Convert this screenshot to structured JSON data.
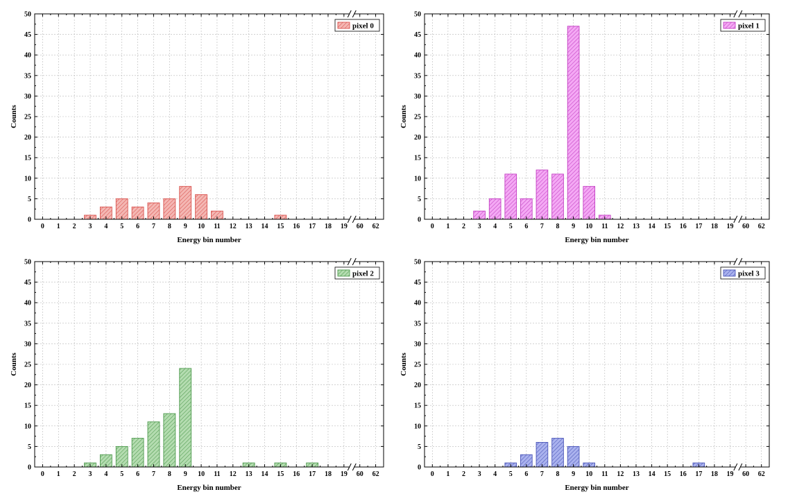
{
  "chart_data": [
    {
      "type": "bar",
      "series_name": "pixel 0",
      "color": "#d9534f",
      "fill": "#f4b7b3",
      "categories": [
        "0",
        "1",
        "2",
        "3",
        "4",
        "5",
        "6",
        "7",
        "8",
        "9",
        "10",
        "11",
        "12",
        "13",
        "14",
        "15",
        "16",
        "17",
        "18",
        "19",
        "60",
        "62"
      ],
      "values": [
        0,
        0,
        0,
        1,
        3,
        5,
        3,
        4,
        5,
        8,
        6,
        2,
        0,
        0,
        0,
        1,
        0,
        0,
        0,
        0,
        0,
        0
      ],
      "xlabel": "Energy bin number",
      "ylabel": "Counts",
      "ylim": [
        0,
        50
      ],
      "yticks": [
        0,
        5,
        10,
        15,
        20,
        25,
        30,
        35,
        40,
        45,
        50
      ],
      "axis_break": "between 19 and 60",
      "legend": "top-right",
      "grid": true
    },
    {
      "type": "bar",
      "series_name": "pixel 1",
      "color": "#c23ec2",
      "fill": "#f4a9f4",
      "categories": [
        "0",
        "1",
        "2",
        "3",
        "4",
        "5",
        "6",
        "7",
        "8",
        "9",
        "10",
        "11",
        "12",
        "13",
        "14",
        "15",
        "16",
        "17",
        "18",
        "19",
        "60",
        "62"
      ],
      "values": [
        0,
        0,
        0,
        2,
        5,
        11,
        5,
        12,
        11,
        47,
        8,
        1,
        0,
        0,
        0,
        0,
        0,
        0,
        0,
        0,
        0,
        0
      ],
      "xlabel": "Energy bin number",
      "ylabel": "Counts",
      "ylim": [
        0,
        50
      ],
      "yticks": [
        0,
        5,
        10,
        15,
        20,
        25,
        30,
        35,
        40,
        45,
        50
      ],
      "axis_break": "between 19 and 60",
      "legend": "top-right",
      "grid": true
    },
    {
      "type": "bar",
      "series_name": "pixel 2",
      "color": "#4f9a4f",
      "fill": "#b4dcb0",
      "categories": [
        "0",
        "1",
        "2",
        "3",
        "4",
        "5",
        "6",
        "7",
        "8",
        "9",
        "10",
        "11",
        "12",
        "13",
        "14",
        "15",
        "16",
        "17",
        "18",
        "19",
        "60",
        "62"
      ],
      "values": [
        0,
        0,
        0,
        1,
        3,
        5,
        7,
        11,
        13,
        24,
        0,
        0,
        0,
        1,
        0,
        1,
        0,
        1,
        0,
        0,
        0,
        0
      ],
      "xlabel": "Energy bin number",
      "ylabel": "Counts",
      "ylim": [
        0,
        50
      ],
      "yticks": [
        0,
        5,
        10,
        15,
        20,
        25,
        30,
        35,
        40,
        45,
        50
      ],
      "axis_break": "between 19 and 60",
      "legend": "top-right",
      "grid": true
    },
    {
      "type": "bar",
      "series_name": "pixel 3",
      "color": "#4a55b8",
      "fill": "#aab2ee",
      "categories": [
        "0",
        "1",
        "2",
        "3",
        "4",
        "5",
        "6",
        "7",
        "8",
        "9",
        "10",
        "11",
        "12",
        "13",
        "14",
        "15",
        "16",
        "17",
        "18",
        "19",
        "60",
        "62"
      ],
      "values": [
        0,
        0,
        0,
        0,
        0,
        1,
        3,
        6,
        7,
        5,
        1,
        0,
        0,
        0,
        0,
        0,
        0,
        1,
        0,
        0,
        0,
        0
      ],
      "xlabel": "Energy bin number",
      "ylabel": "Counts",
      "ylim": [
        0,
        50
      ],
      "yticks": [
        0,
        5,
        10,
        15,
        20,
        25,
        30,
        35,
        40,
        45,
        50
      ],
      "axis_break": "between 19 and 60",
      "legend": "top-right",
      "grid": true
    }
  ]
}
